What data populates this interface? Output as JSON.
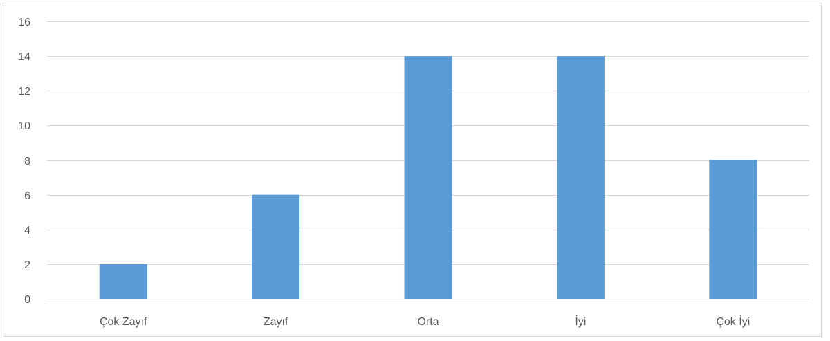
{
  "chart_data": {
    "type": "bar",
    "categories": [
      "Çok Zayıf",
      "Zayıf",
      "Orta",
      "İyi",
      "Çok İyi"
    ],
    "values": [
      2,
      6,
      14,
      14,
      8
    ],
    "title": "",
    "xlabel": "",
    "ylabel": "",
    "ylim": [
      0,
      16
    ],
    "yticks": [
      0,
      2,
      4,
      6,
      8,
      10,
      12,
      14,
      16
    ],
    "grid": true,
    "legend": "none",
    "bar_color": "#5b9bd5",
    "grid_color": "#d9d9d9"
  }
}
